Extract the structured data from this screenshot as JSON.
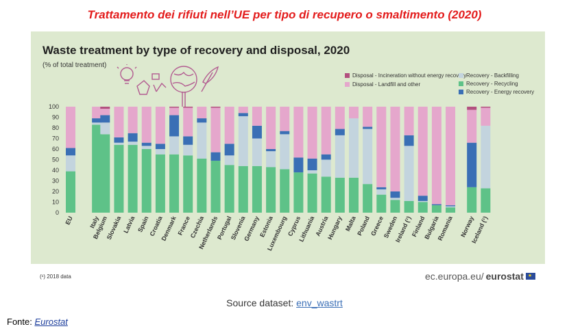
{
  "page_heading": "Trattamento dei rifiuti nell’UE per tipo di recupero o smaltimento (2020)",
  "chart_data": {
    "type": "bar",
    "stacked": true,
    "title": "Waste treatment by type of recovery and disposal, 2020",
    "subtitle": "(% of total treatment)",
    "ylim": [
      0,
      100
    ],
    "yticks": [
      0,
      10,
      20,
      30,
      40,
      50,
      60,
      70,
      80,
      90,
      100
    ],
    "grid": false,
    "legend_position": "top-right",
    "categories": [
      "EU",
      "Italy",
      "Belgium",
      "Slovakia",
      "Latvia",
      "Spain",
      "Croatia",
      "Denmark",
      "France",
      "Czechia",
      "Netherlands",
      "Portugal",
      "Slovenia",
      "Germany",
      "Estonia",
      "Luxembourg",
      "Cyprus",
      "Lithuania",
      "Austria",
      "Hungary",
      "Malta",
      "Poland",
      "Greece",
      "Sweden",
      "Ireland (¹)",
      "Finland",
      "Bulgaria",
      "Romania",
      "Norway",
      "Iceland (¹)"
    ],
    "series": [
      {
        "name": "Recovery - Recycling",
        "color": "#5ec288",
        "values": [
          39,
          83,
          74,
          64,
          64,
          60,
          55,
          55,
          54,
          51,
          49,
          45,
          44,
          44,
          43,
          41,
          38,
          37,
          34,
          33,
          33,
          27,
          17,
          12,
          11,
          10,
          7,
          5,
          24,
          23
        ]
      },
      {
        "name": "Recovery - Backfilling",
        "color": "#c3d4de",
        "values": [
          15,
          2,
          11,
          2,
          3,
          3,
          5,
          17,
          10,
          34,
          0,
          9,
          47,
          26,
          15,
          33,
          0,
          3,
          16,
          40,
          56,
          52,
          5,
          2,
          52,
          1,
          0,
          1,
          0,
          59
        ]
      },
      {
        "name": "Recovery - Energy recovery",
        "color": "#3a6fb5",
        "values": [
          7,
          4,
          7,
          5,
          8,
          3,
          5,
          20,
          8,
          4,
          8,
          11,
          3,
          12,
          2,
          3,
          14,
          11,
          5,
          6,
          0,
          2,
          2,
          6,
          10,
          5,
          1,
          1,
          42,
          0
        ]
      },
      {
        "name": "Disposal - Landfill and other",
        "color": "#e5a7cc",
        "values": [
          39,
          11,
          6,
          29,
          25,
          34,
          35,
          7,
          27,
          11,
          42,
          35,
          6,
          18,
          40,
          23,
          48,
          49,
          45,
          21,
          11,
          19,
          76,
          80,
          27,
          84,
          92,
          93,
          31,
          17
        ]
      },
      {
        "name": "Disposal - Incineration without energy recovery",
        "color": "#b2507f",
        "values": [
          0,
          0,
          2,
          0,
          0,
          0,
          0,
          1,
          1,
          0,
          1,
          0,
          0,
          0,
          0,
          0,
          0,
          0,
          0,
          0,
          0,
          0,
          0,
          0,
          0,
          0,
          0,
          0,
          3,
          1
        ]
      }
    ],
    "legend": [
      {
        "label": "Disposal - Incineration without energy recovery",
        "color": "#b2507f"
      },
      {
        "label": "Disposal - Landfill and other",
        "color": "#e5a7cc"
      },
      {
        "label": "Recovery - Backfilling",
        "color": "#c3d4de"
      },
      {
        "label": "Recovery - Recycling",
        "color": "#5ec288"
      },
      {
        "label": "Recovery - Energy recovery",
        "color": "#3a6fb5"
      }
    ]
  },
  "footnote": "(¹) 2018 data",
  "brand": {
    "prefix": "ec.europa.eu/",
    "name": "eurostat"
  },
  "source": {
    "label": "Source dataset:",
    "link": "env_wastrt"
  },
  "fonte": {
    "label": "Fonte:",
    "link": "Eurostat"
  }
}
